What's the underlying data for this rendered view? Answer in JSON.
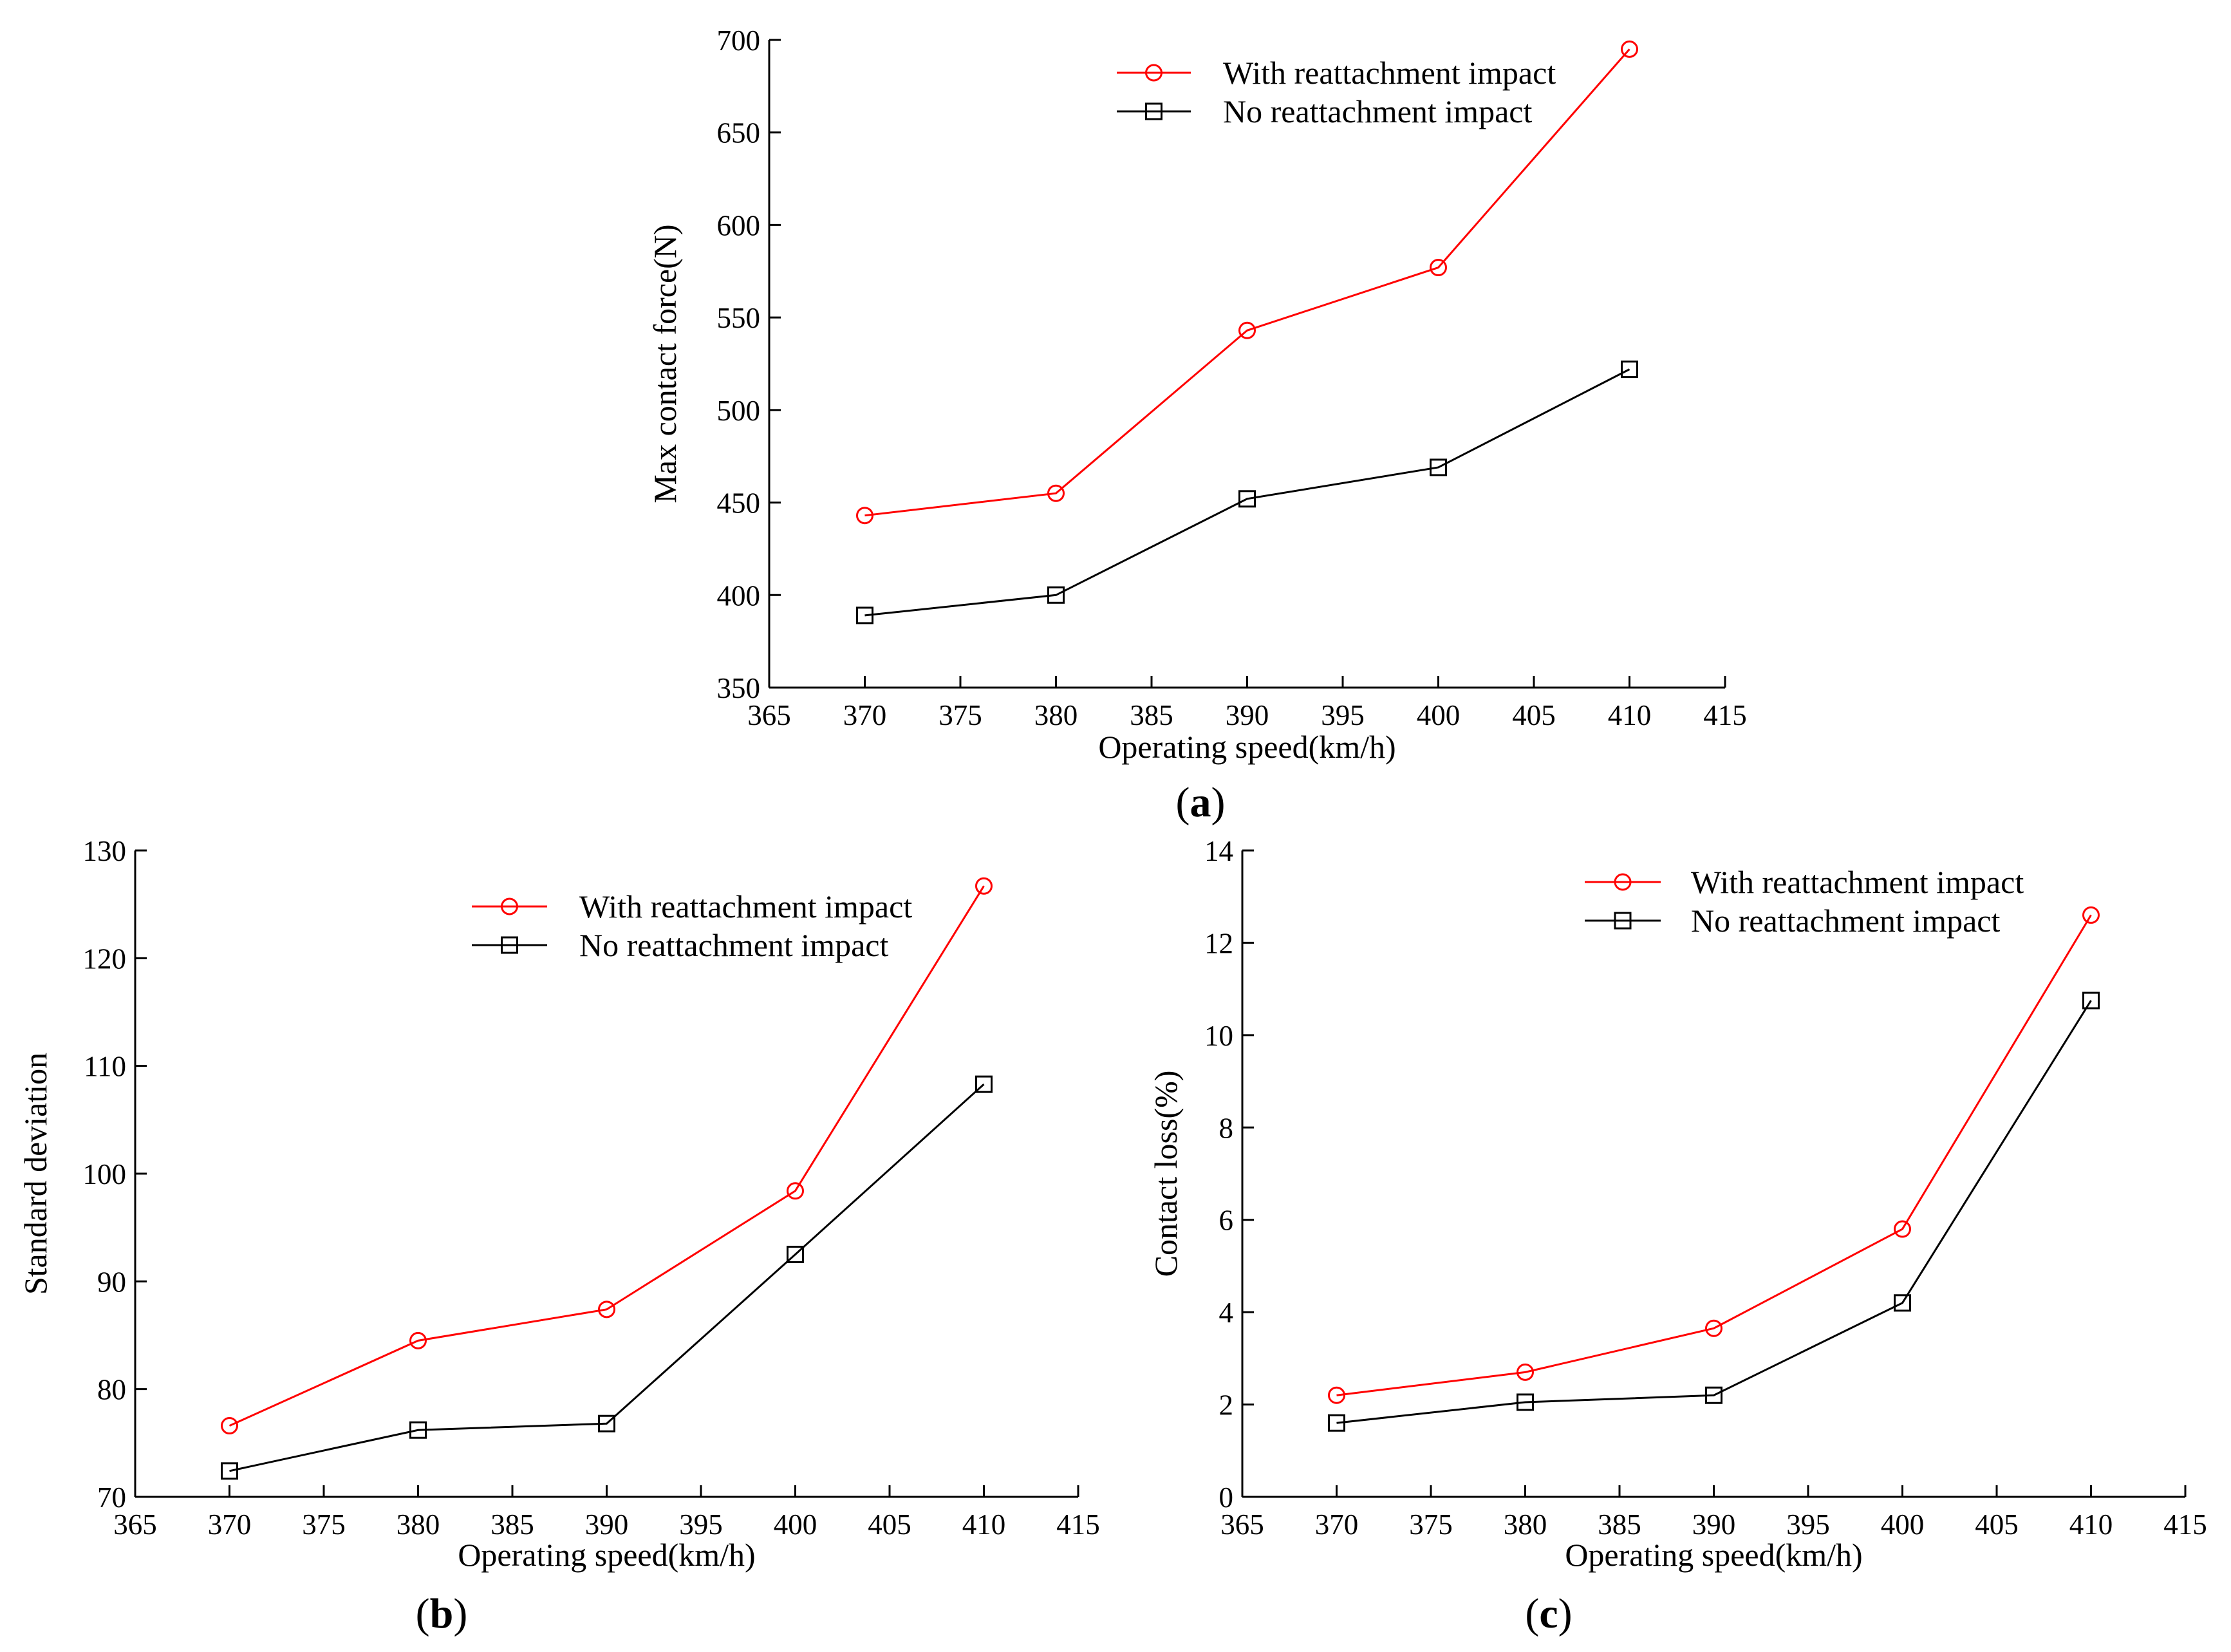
{
  "chart_data": [
    {
      "id": "a",
      "type": "line",
      "panel_label": "a",
      "xlabel": "Operating speed(km/h)",
      "ylabel": "Max contact force(N)",
      "xlim": [
        365,
        415
      ],
      "ylim": [
        350,
        700
      ],
      "xticks": [
        365,
        370,
        375,
        380,
        385,
        390,
        395,
        400,
        405,
        410,
        415
      ],
      "yticks": [
        350,
        400,
        450,
        500,
        550,
        600,
        650,
        700
      ],
      "x": [
        370,
        380,
        390,
        400,
        410
      ],
      "series": [
        {
          "name": "With reattachment impact",
          "color": "#ff0000",
          "marker": "circle",
          "values": [
            443,
            455,
            543,
            577,
            695
          ]
        },
        {
          "name": "No reattachment impact",
          "color": "#000000",
          "marker": "square",
          "values": [
            389,
            400,
            452,
            469,
            522
          ]
        }
      ],
      "legend": "top-center"
    },
    {
      "id": "b",
      "type": "line",
      "panel_label": "b",
      "xlabel": "Operating speed(km/h)",
      "ylabel": "Standard deviation",
      "xlim": [
        365,
        415
      ],
      "ylim": [
        70,
        130
      ],
      "xticks": [
        365,
        370,
        375,
        380,
        385,
        390,
        395,
        400,
        405,
        410,
        415
      ],
      "yticks": [
        70,
        80,
        90,
        100,
        110,
        120,
        130
      ],
      "x": [
        370,
        380,
        390,
        400,
        410
      ],
      "series": [
        {
          "name": "With reattachment impact",
          "color": "#ff0000",
          "marker": "circle",
          "values": [
            76.6,
            84.5,
            87.4,
            98.4,
            126.7
          ]
        },
        {
          "name": "No reattachment impact",
          "color": "#000000",
          "marker": "square",
          "values": [
            72.4,
            76.2,
            76.8,
            92.5,
            108.3
          ]
        }
      ],
      "legend": "top-center"
    },
    {
      "id": "c",
      "type": "line",
      "panel_label": "c",
      "xlabel": "Operating speed(km/h)",
      "ylabel": "Contact loss(%)",
      "xlim": [
        365,
        415
      ],
      "ylim": [
        0,
        14
      ],
      "xticks": [
        365,
        370,
        375,
        380,
        385,
        390,
        395,
        400,
        405,
        410,
        415
      ],
      "yticks": [
        0,
        2,
        4,
        6,
        8,
        10,
        12,
        14
      ],
      "x": [
        370,
        380,
        390,
        400,
        410
      ],
      "series": [
        {
          "name": "With reattachment impact",
          "color": "#ff0000",
          "marker": "circle",
          "values": [
            2.2,
            2.7,
            3.65,
            5.8,
            12.6
          ]
        },
        {
          "name": "No reattachment impact",
          "color": "#000000",
          "marker": "square",
          "values": [
            1.6,
            2.05,
            2.2,
            4.2,
            10.75
          ]
        }
      ],
      "legend": "top-center"
    }
  ]
}
